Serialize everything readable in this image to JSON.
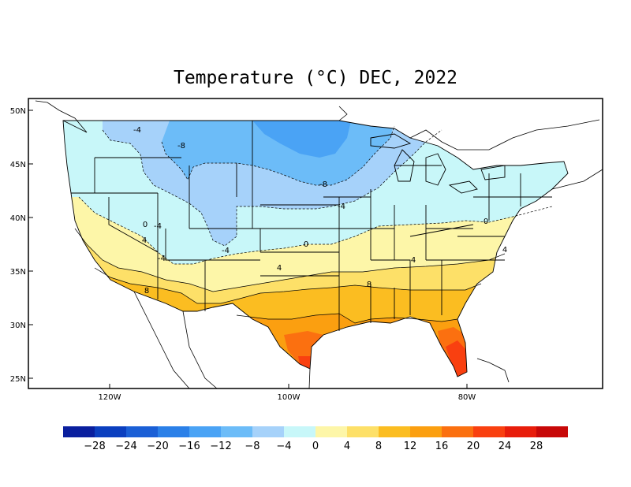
{
  "title": "Temperature (°C) DEC, 2022",
  "lat_labels": [
    "50N",
    "45N",
    "40N",
    "35N",
    "30N",
    "25N"
  ],
  "lon_labels": [
    "120W",
    "100W",
    "80W"
  ],
  "contour_labels": [
    "-4",
    "-8",
    "-8",
    "-4",
    "0",
    "-4",
    "-4",
    "0",
    "4",
    "0",
    "4",
    "4",
    "-4",
    "8",
    "8",
    "4"
  ],
  "colorbar": {
    "colors": [
      "#0a1f9e",
      "#0b3fbf",
      "#1a5fd6",
      "#2b80e8",
      "#4aa3f5",
      "#6cbcf8",
      "#a6d2fa",
      "#c8f7f9",
      "#fdf6a8",
      "#fde068",
      "#fbbd21",
      "#fb9f10",
      "#fb7010",
      "#f94010",
      "#e81d0b",
      "#c80808"
    ],
    "ticks": [
      "−28",
      "−24",
      "−20",
      "−16",
      "−12",
      "−8",
      "−4",
      "0",
      "4",
      "8",
      "12",
      "16",
      "20",
      "24",
      "28"
    ]
  }
}
